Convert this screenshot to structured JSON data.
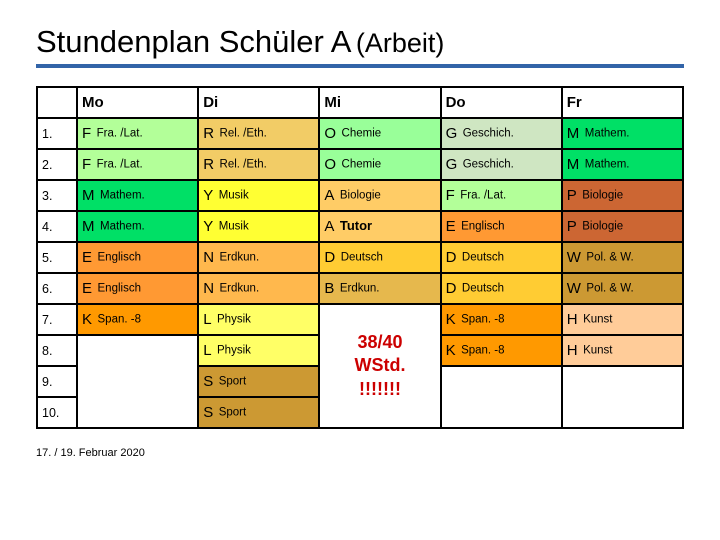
{
  "title_main": "Stundenplan Schüler A",
  "title_sub": "(Arbeit)",
  "footer": "17. / 19. Februar 2020",
  "colors": {
    "F": "#b3ff99",
    "R": "#f2cc66",
    "O": "#99ff99",
    "G": "#cfe6c2",
    "M": "#00e066",
    "Y": "#ffff33",
    "A": "#ffcc66",
    "E": "#ff9933",
    "P": "#cc6633",
    "N": "#ffb84d",
    "D": "#ffcc33",
    "W": "#cc9933",
    "B": "#e6b84d",
    "K": "#ff9900",
    "L": "#ffff66",
    "S": "#cc9933",
    "H": "#ffcc99",
    "header": "#ffffff",
    "empty": "#ffffff",
    "summary_text": "#cc0000",
    "underline": "#3264a8"
  },
  "days": [
    "Mo",
    "Di",
    "Mi",
    "Do",
    "Fr"
  ],
  "summary": {
    "line1": "38/40",
    "line2": "WStd.",
    "line3": "!!!!!!!"
  },
  "rows": [
    {
      "p": "1.",
      "cells": [
        {
          "c": "F",
          "t": "Fra. /Lat."
        },
        {
          "c": "R",
          "t": "Rel. /Eth."
        },
        {
          "c": "O",
          "t": "Chemie"
        },
        {
          "c": "G",
          "t": "Geschich."
        },
        {
          "c": "M",
          "t": "Mathem."
        }
      ]
    },
    {
      "p": "2.",
      "cells": [
        {
          "c": "F",
          "t": "Fra. /Lat."
        },
        {
          "c": "R",
          "t": "Rel. /Eth."
        },
        {
          "c": "O",
          "t": "Chemie"
        },
        {
          "c": "G",
          "t": "Geschich."
        },
        {
          "c": "M",
          "t": "Mathem."
        }
      ]
    },
    {
      "p": "3.",
      "cells": [
        {
          "c": "M",
          "t": "Mathem."
        },
        {
          "c": "Y",
          "t": "Musik"
        },
        {
          "c": "A",
          "t": "Biologie"
        },
        {
          "c": "F",
          "t": "Fra. /Lat."
        },
        {
          "c": "P",
          "t": "Biologie"
        }
      ]
    },
    {
      "p": "4.",
      "cells": [
        {
          "c": "M",
          "t": "Mathem."
        },
        {
          "c": "Y",
          "t": "Musik"
        },
        {
          "c": "A",
          "t": "Tutor",
          "bold": true
        },
        {
          "c": "E",
          "t": "Englisch"
        },
        {
          "c": "P",
          "t": "Biologie"
        }
      ]
    },
    {
      "p": "5.",
      "cells": [
        {
          "c": "E",
          "t": "Englisch"
        },
        {
          "c": "N",
          "t": "Erdkun."
        },
        {
          "c": "D",
          "t": "Deutsch"
        },
        {
          "c": "D",
          "t": "Deutsch"
        },
        {
          "c": "W",
          "t": "Pol. & W."
        }
      ]
    },
    {
      "p": "6.",
      "cells": [
        {
          "c": "E",
          "t": "Englisch"
        },
        {
          "c": "N",
          "t": "Erdkun."
        },
        {
          "c": "B",
          "t": "Erdkun."
        },
        {
          "c": "D",
          "t": "Deutsch"
        },
        {
          "c": "W",
          "t": "Pol. & W."
        }
      ]
    },
    {
      "p": "7.",
      "cells": [
        {
          "c": "K",
          "t": "Span. -8"
        },
        {
          "c": "L",
          "t": "Physik"
        },
        null,
        {
          "c": "K",
          "t": "Span. -8"
        },
        {
          "c": "H",
          "t": "Kunst"
        }
      ]
    },
    {
      "p": "8.",
      "cells": [
        null,
        {
          "c": "L",
          "t": "Physik"
        },
        null,
        {
          "c": "K",
          "t": "Span. -8"
        },
        {
          "c": "H",
          "t": "Kunst"
        }
      ]
    },
    {
      "p": "9.",
      "cells": [
        null,
        {
          "c": "S",
          "t": "Sport"
        },
        null,
        null,
        null
      ]
    },
    {
      "p": "10.",
      "cells": [
        null,
        {
          "c": "S",
          "t": "Sport"
        },
        null,
        null,
        null
      ]
    }
  ]
}
